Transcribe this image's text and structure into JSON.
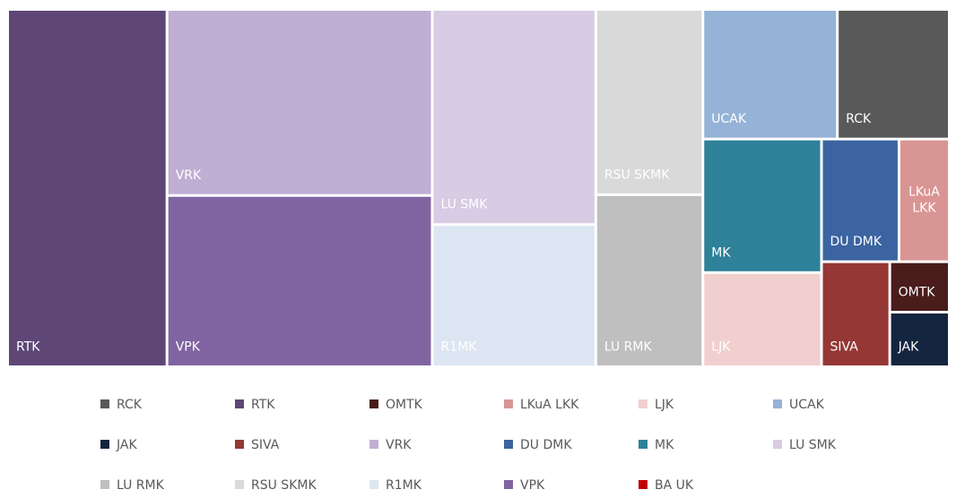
{
  "chart_data": {
    "type": "treemap",
    "series": [
      {
        "name": "RCK",
        "color": "#595959",
        "values": [
          174
        ]
      },
      {
        "name": "RTK",
        "color": "#5e4776",
        "values": [
          683
        ]
      },
      {
        "name": "OMTK",
        "color": "#4a1c1c",
        "values": [
          36
        ]
      },
      {
        "name": "LKuA LKK",
        "color": "#d99594",
        "values": [
          74
        ]
      },
      {
        "name": "LJK",
        "color": "#f2cfcf",
        "values": [
          134
        ]
      },
      {
        "name": "UCAK",
        "color": "#95b3d7",
        "values": [
          209
        ]
      },
      {
        "name": "JAK",
        "color": "#14253f",
        "values": [
          39
        ]
      },
      {
        "name": "SIVA",
        "color": "#953735",
        "values": [
          86
        ]
      },
      {
        "name": "VRK",
        "color": "#c0aed4",
        "values": [
          592
        ]
      },
      {
        "name": "DU DMK",
        "color": "#3b64a0",
        "values": [
          114
        ]
      },
      {
        "name": "MK",
        "color": "#2e8199",
        "values": [
          190
        ]
      },
      {
        "name": "LU SMK",
        "color": "#d7cce3",
        "values": [
          422
        ]
      },
      {
        "name": "LU RMK",
        "color": "#bfbfbf",
        "values": [
          221
        ]
      },
      {
        "name": "RSU SKMK",
        "color": "#d9d9d9",
        "values": [
          238
        ]
      },
      {
        "name": "R1MK",
        "color": "#dce6f2",
        "values": [
          279
        ]
      },
      {
        "name": "VPK",
        "color": "#8064a2",
        "values": [
          545
        ]
      },
      {
        "name": "BA UK",
        "color": "#c00000",
        "values": [
          0
        ]
      }
    ]
  }
}
